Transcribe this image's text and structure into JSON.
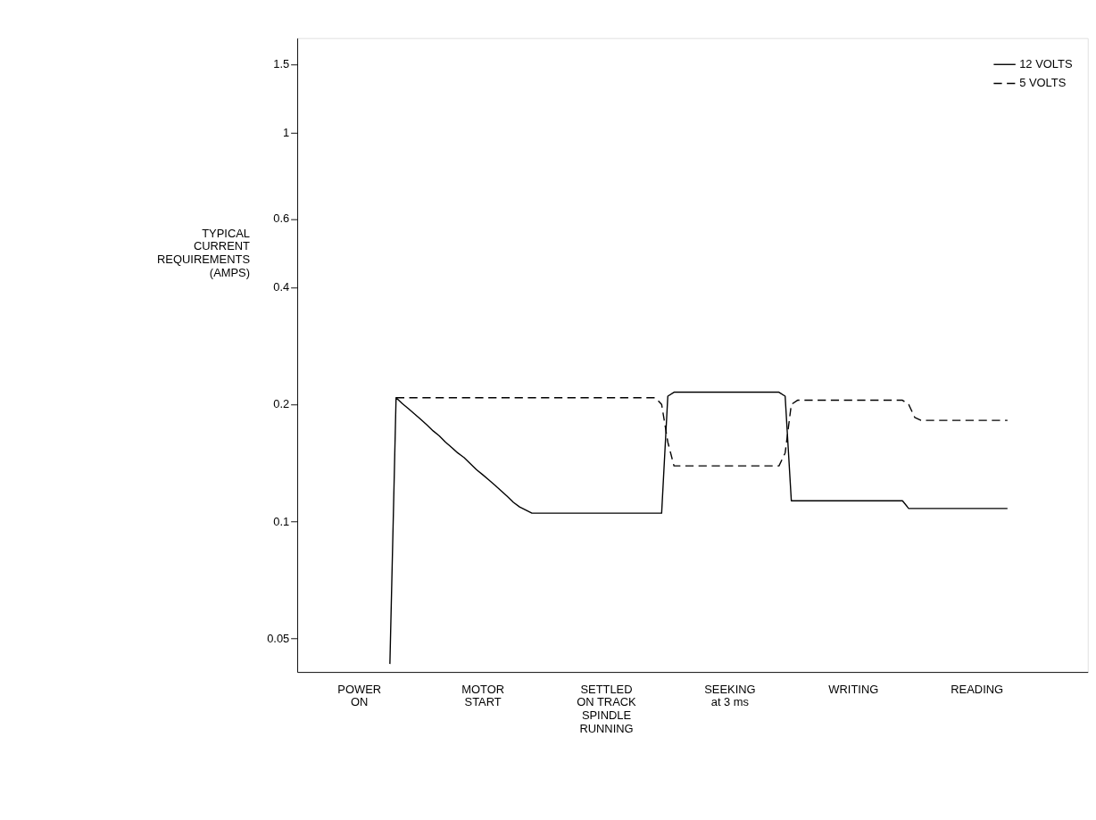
{
  "chart_data": {
    "type": "line",
    "ylabel": "TYPICAL\nCURRENT\nREQUIREMENTS\n(AMPS)",
    "log": "y",
    "ylim": [
      0.041,
      1.75
    ],
    "yticks": [
      0.05,
      0.1,
      0.2,
      0.4,
      0.6,
      1.0,
      1.5
    ],
    "categories": [
      null,
      null,
      null,
      null,
      null,
      null,
      null,
      null,
      null,
      null,
      "POWER\nON",
      null,
      null,
      null,
      null,
      null,
      null,
      null,
      null,
      null,
      null,
      null,
      null,
      null,
      null,
      null,
      null,
      null,
      null,
      null,
      "MOTOR\nSTART",
      null,
      null,
      null,
      null,
      null,
      null,
      null,
      null,
      null,
      null,
      null,
      null,
      null,
      null,
      null,
      null,
      null,
      null,
      null,
      "SETTLED\nON TRACK\nSPINDLE\nRUNNING",
      null,
      null,
      null,
      null,
      null,
      null,
      null,
      null,
      null,
      null,
      null,
      null,
      null,
      null,
      null,
      null,
      null,
      null,
      null,
      "SEEKING\nat 3 ms",
      null,
      null,
      null,
      null,
      null,
      null,
      null,
      null,
      null,
      null,
      null,
      null,
      null,
      null,
      null,
      null,
      null,
      null,
      null,
      "WRITING",
      null,
      null,
      null,
      null,
      null,
      null,
      null,
      null,
      null,
      null,
      null,
      null,
      null,
      null,
      null,
      null,
      null,
      null,
      null,
      "READING",
      null,
      null,
      null,
      null,
      null,
      null,
      null,
      null,
      null,
      null,
      null,
      null,
      null,
      null,
      null,
      null,
      null,
      null
    ],
    "grid": false,
    "legend": "top right",
    "marker": "none",
    "series": [
      {
        "name": "12 VOLTS",
        "color": "#000000",
        "line_style": "solid",
        "values": [
          null,
          null,
          null,
          null,
          null,
          null,
          null,
          null,
          null,
          null,
          null,
          null,
          null,
          null,
          null,
          0.043,
          0.208,
          0.201,
          0.195,
          0.189,
          0.183,
          0.177,
          0.171,
          0.166,
          0.16,
          0.155,
          0.15,
          0.146,
          0.141,
          0.136,
          0.132,
          0.128,
          0.124,
          0.12,
          0.116,
          0.112,
          0.109,
          0.107,
          0.105,
          0.105,
          0.105,
          0.105,
          0.105,
          0.105,
          0.105,
          0.105,
          0.105,
          0.105,
          0.105,
          0.105,
          0.105,
          0.105,
          0.105,
          0.105,
          0.105,
          0.105,
          0.105,
          0.105,
          0.105,
          0.105,
          0.21,
          0.215,
          0.215,
          0.215,
          0.215,
          0.215,
          0.215,
          0.215,
          0.215,
          0.215,
          0.215,
          0.215,
          0.215,
          0.215,
          0.215,
          0.215,
          0.215,
          0.215,
          0.215,
          0.21,
          0.113,
          0.113,
          0.113,
          0.113,
          0.113,
          0.113,
          0.113,
          0.113,
          0.113,
          0.113,
          0.113,
          0.113,
          0.113,
          0.113,
          0.113,
          0.113,
          0.113,
          0.113,
          0.113,
          0.108,
          0.108,
          0.108,
          0.108,
          0.108,
          0.108,
          0.108,
          0.108,
          0.108,
          0.108,
          0.108,
          0.108,
          0.108,
          0.108,
          0.108,
          0.108,
          0.108,
          null,
          null,
          null,
          null,
          null,
          null,
          null,
          null,
          null,
          null,
          null,
          null,
          null
        ]
      },
      {
        "name": "5 VOLTS",
        "color": "#000000",
        "line_style": "dashed",
        "values": [
          null,
          null,
          null,
          null,
          null,
          null,
          null,
          null,
          null,
          null,
          null,
          null,
          null,
          null,
          null,
          null,
          0.208,
          0.208,
          0.208,
          0.208,
          0.208,
          0.208,
          0.208,
          0.208,
          0.208,
          0.208,
          0.208,
          0.208,
          0.208,
          0.208,
          0.208,
          0.208,
          0.208,
          0.208,
          0.208,
          0.208,
          0.208,
          0.208,
          0.208,
          0.208,
          0.208,
          0.208,
          0.208,
          0.208,
          0.208,
          0.208,
          0.208,
          0.208,
          0.208,
          0.208,
          0.208,
          0.208,
          0.208,
          0.208,
          0.208,
          0.208,
          0.208,
          0.208,
          0.208,
          0.2,
          0.16,
          0.139,
          0.139,
          0.139,
          0.139,
          0.139,
          0.139,
          0.139,
          0.139,
          0.139,
          0.139,
          0.139,
          0.139,
          0.139,
          0.139,
          0.139,
          0.139,
          0.139,
          0.139,
          0.15,
          0.2,
          0.205,
          0.205,
          0.205,
          0.205,
          0.205,
          0.205,
          0.205,
          0.205,
          0.205,
          0.205,
          0.205,
          0.205,
          0.205,
          0.205,
          0.205,
          0.205,
          0.205,
          0.205,
          0.2,
          0.185,
          0.182,
          0.182,
          0.182,
          0.182,
          0.182,
          0.182,
          0.182,
          0.182,
          0.182,
          0.182,
          0.182,
          0.182,
          0.182,
          0.182,
          0.182,
          null,
          null,
          null,
          null,
          null,
          null,
          null,
          null,
          null,
          null,
          null,
          null,
          null
        ]
      }
    ]
  }
}
